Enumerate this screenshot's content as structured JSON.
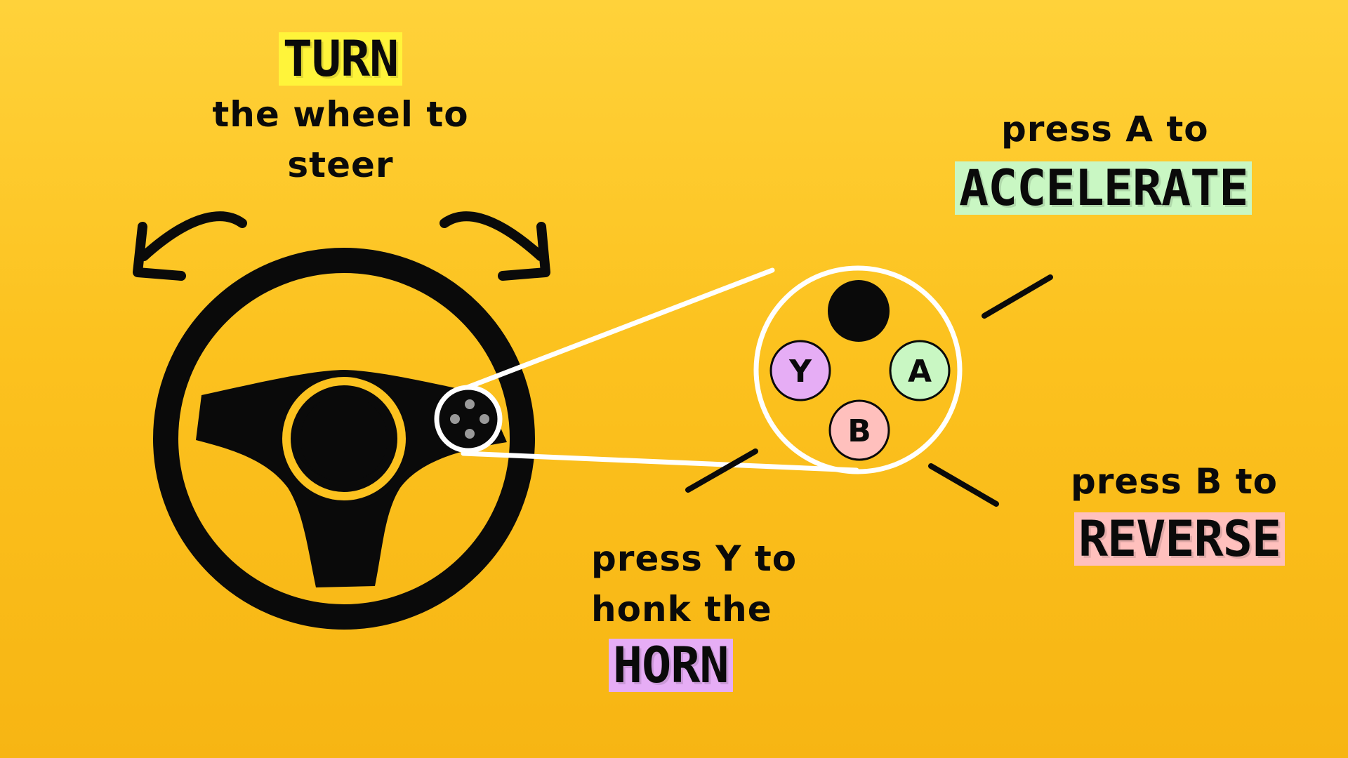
{
  "colors": {
    "background_top": "#ffd23a",
    "background_bottom": "#f7b513",
    "ink": "#0a0a0a",
    "turn_highlight": "#fff43a",
    "accelerate_highlight": "#c9f7c3",
    "reverse_highlight": "#ffc0bd",
    "horn_highlight": "#e6adf5",
    "button_y": "#e6adf5",
    "button_a": "#c9f7c3",
    "button_b": "#ffc0bd"
  },
  "turn": {
    "keyword": "TURN",
    "line1": "the wheel to",
    "line2": "steer"
  },
  "accelerate": {
    "prefix": "press A to",
    "keyword": "ACCELERATE"
  },
  "reverse": {
    "prefix": "press B to",
    "keyword": "REVERSE"
  },
  "horn": {
    "line1": "press Y to",
    "line2": "honk the",
    "keyword": "HORN"
  },
  "buttons": {
    "y": "Y",
    "a": "A",
    "b": "B"
  },
  "icons": {
    "wheel": "steering-wheel-icon",
    "left_arrow": "curved-arrow-left-icon",
    "right_arrow": "curved-arrow-right-icon"
  }
}
